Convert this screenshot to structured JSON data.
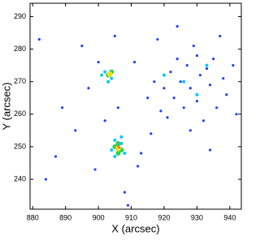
{
  "chart_data": {
    "type": "scatter",
    "x_label": "X (arcsec)",
    "y_label": "Y (arcsec)",
    "xlim": [
      879.2,
      943.5
    ],
    "ylim": [
      230.8,
      294.1
    ],
    "xticks": [
      880,
      890,
      900,
      910,
      920,
      930,
      940
    ],
    "yticks": [
      240,
      250,
      260,
      270,
      280,
      290
    ],
    "series": [
      {
        "color": "#2040ff",
        "size": 1.6,
        "x": [
          884,
          889,
          893,
          897,
          899,
          902,
          906,
          908,
          911,
          913,
          915,
          917,
          918,
          920,
          921,
          922,
          923,
          924,
          925,
          926,
          927,
          928,
          929,
          930,
          931,
          932,
          933,
          934,
          935,
          936,
          937,
          938,
          939,
          941,
          942,
          916,
          912,
          909,
          895,
          887,
          882,
          900,
          905,
          919,
          928,
          934,
          924,
          930
        ],
        "values": [
          240,
          262,
          255,
          268,
          243,
          258,
          262,
          236,
          276,
          248,
          265,
          270,
          283,
          268,
          259,
          273,
          265,
          277,
          270,
          262,
          275,
          268,
          281,
          264,
          272,
          258,
          274,
          269,
          277,
          262,
          284,
          271,
          266,
          275,
          260,
          254,
          244,
          232,
          281,
          247,
          283,
          276,
          284,
          261,
          255,
          249,
          287,
          278
        ]
      },
      {
        "color": "#00c8ff",
        "size": 2,
        "x": [
          902,
          904,
          903,
          905,
          907,
          908,
          905,
          906,
          907,
          904,
          926,
          930,
          920,
          933,
          901
        ],
        "values": [
          273,
          271,
          270,
          252,
          251,
          248,
          247,
          250,
          253,
          249,
          270,
          266,
          272,
          275,
          272
        ]
      },
      {
        "color": "#30d050",
        "size": 3,
        "x": [
          903,
          904,
          905,
          906,
          907,
          906
        ],
        "values": [
          272,
          273,
          250,
          251,
          249,
          248
        ]
      },
      {
        "color": "#f0e020",
        "size": 3.5,
        "x": [
          903.5,
          906
        ],
        "values": [
          272.3,
          249.5
        ]
      },
      {
        "color": "#ff8020",
        "size": 2,
        "x": [
          906.2
        ],
        "values": [
          250
        ]
      }
    ]
  }
}
